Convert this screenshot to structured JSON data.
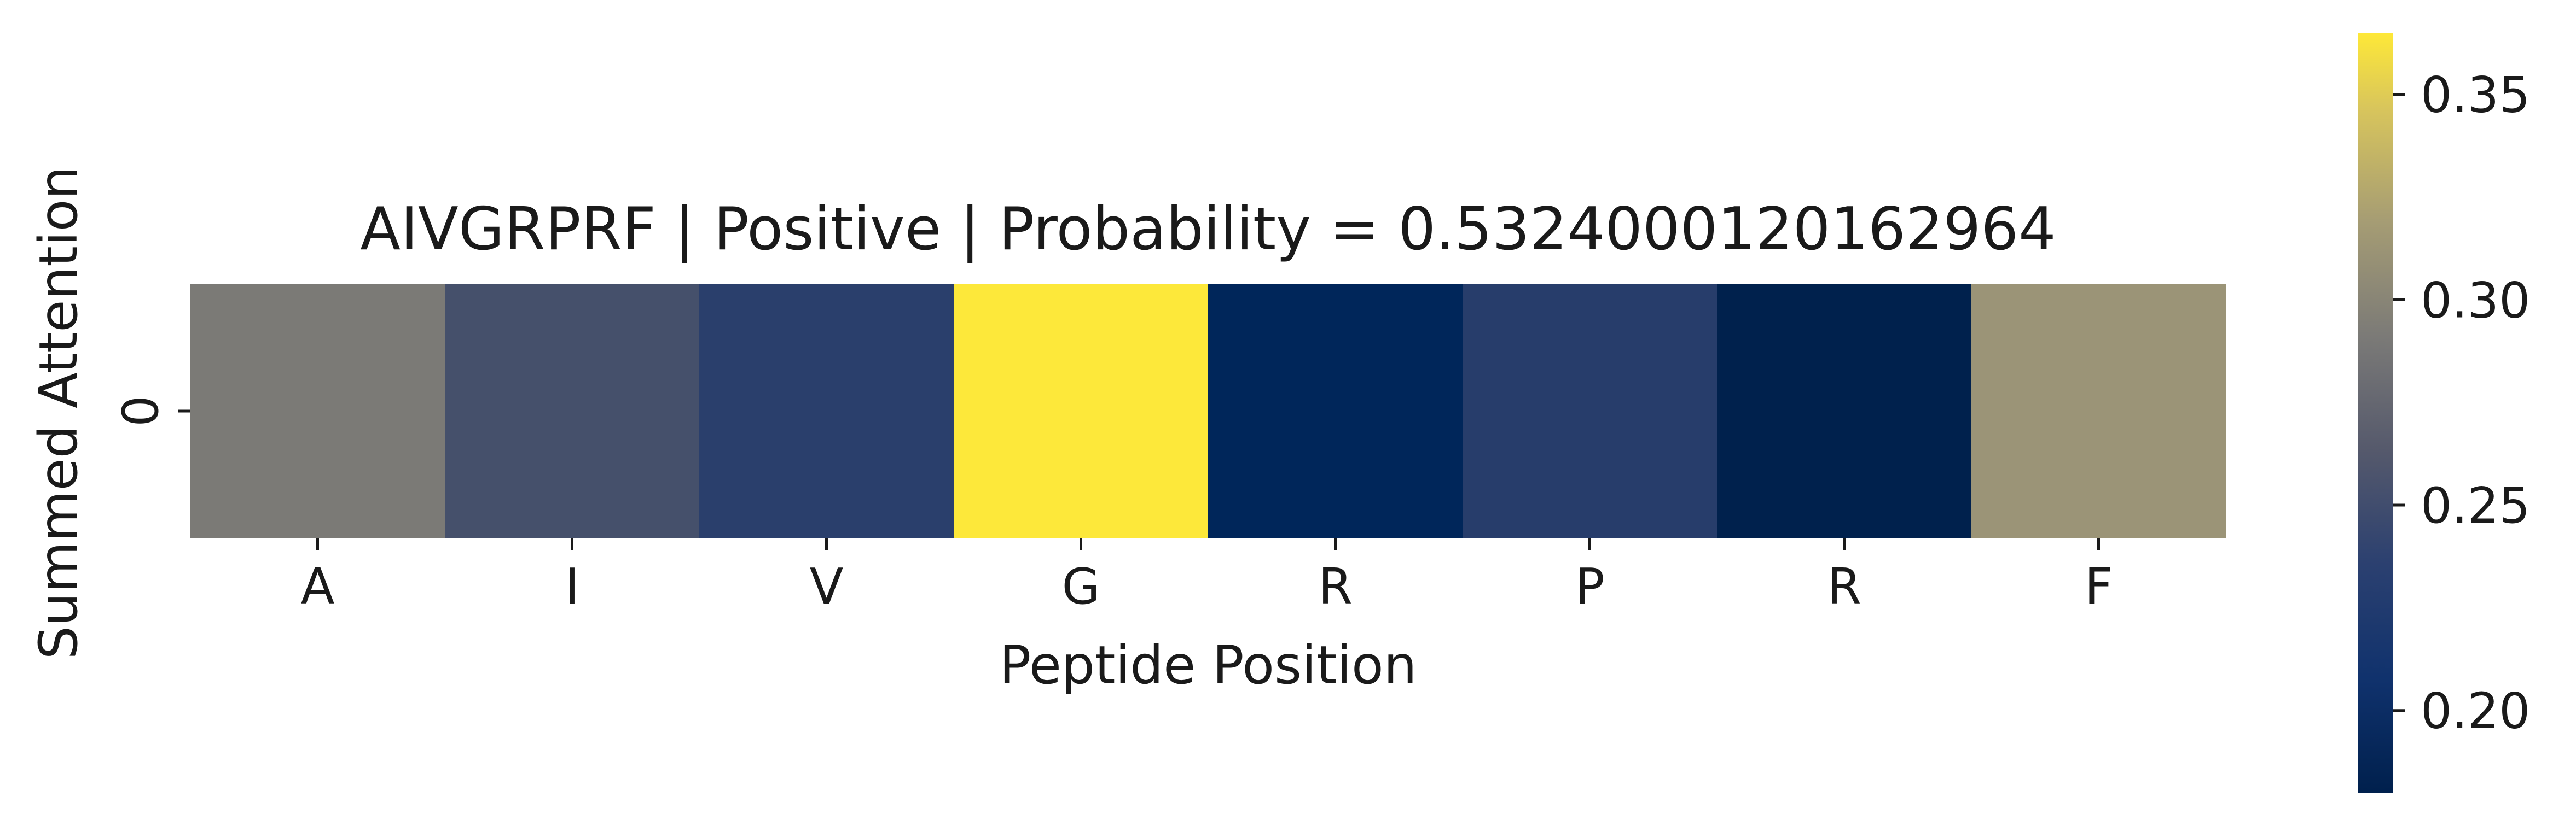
{
  "chart_data": {
    "type": "heatmap",
    "title": "AIVGRPRF | Positive | Probability = 0.5324000120162964",
    "xlabel": "Peptide Position",
    "ylabel": "Summed Attention",
    "x_categories": [
      "A",
      "I",
      "V",
      "G",
      "R",
      "P",
      "R",
      "F"
    ],
    "y_categories": [
      "0"
    ],
    "values": [
      [
        0.27,
        0.235,
        0.215,
        0.365,
        0.195,
        0.213,
        0.183,
        0.305
      ]
    ],
    "colorbar": {
      "colormap": "cividis",
      "vmin": 0.18,
      "vmax": 0.365,
      "ticks": [
        "0.20",
        "0.25",
        "0.30",
        "0.35"
      ]
    }
  },
  "colors": {
    "cells": [
      "#7b7a76",
      "#45506b",
      "#2a3f6c",
      "#fde83a",
      "#00265a",
      "#273d6b",
      "#00214d",
      "#9b9477"
    ]
  }
}
